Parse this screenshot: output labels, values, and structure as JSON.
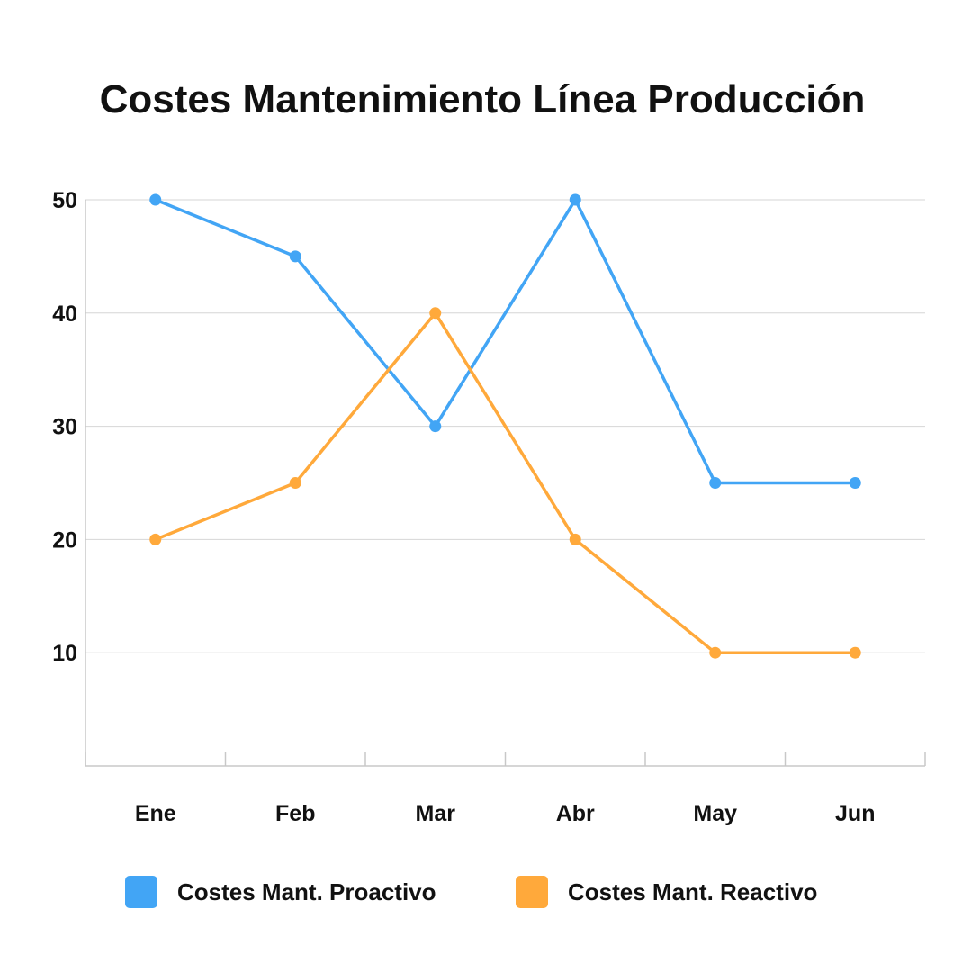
{
  "chart_data": {
    "type": "line",
    "title": "Costes Mantenimiento Línea Producción",
    "categories": [
      "Ene",
      "Feb",
      "Mar",
      "Abr",
      "May",
      "Jun"
    ],
    "series": [
      {
        "name": "Costes Mant. Proactivo",
        "values": [
          50,
          45,
          30,
          50,
          25,
          25
        ],
        "color": "#42a5f5"
      },
      {
        "name": "Costes Mant. Reactivo",
        "values": [
          20,
          25,
          40,
          20,
          10,
          10
        ],
        "color": "#ffa93b"
      }
    ],
    "yticks": [
      10,
      20,
      30,
      40,
      50
    ],
    "ylim": [
      0,
      50
    ],
    "xlabel": "",
    "ylabel": "",
    "grid": true,
    "legend_position": "bottom"
  }
}
